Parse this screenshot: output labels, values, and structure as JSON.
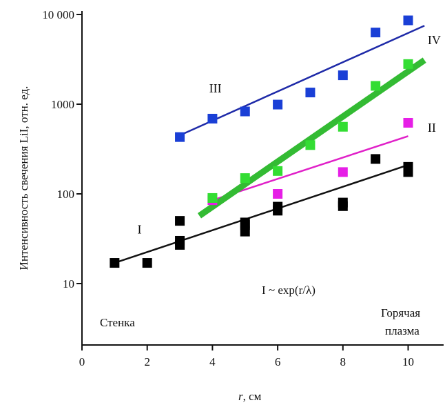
{
  "chart_data": {
    "type": "scatter",
    "xlabel_prefix": "r",
    "xlabel_suffix": ", см",
    "ylabel": "Интенсивность свечения LiI, отн. ед.",
    "xlim": [
      0,
      11
    ],
    "ylim": [
      2,
      10000
    ],
    "yscale": "log",
    "xticks": [
      0,
      2,
      4,
      6,
      8,
      10
    ],
    "yticks": [
      {
        "value": 10,
        "label": "10"
      },
      {
        "value": 100,
        "label": "100"
      },
      {
        "value": 1000,
        "label": "1000"
      },
      {
        "value": 10000,
        "label": "10 000"
      }
    ],
    "grid": false,
    "series": [
      {
        "name": "I",
        "color": "#000000",
        "line_color": "#111111",
        "points": [
          [
            1,
            17
          ],
          [
            2,
            17
          ],
          [
            3,
            27
          ],
          [
            3,
            30
          ],
          [
            3,
            50
          ],
          [
            5,
            38
          ],
          [
            5,
            45
          ],
          [
            5,
            48
          ],
          [
            6,
            65
          ],
          [
            6,
            72
          ],
          [
            8,
            73
          ],
          [
            8,
            80
          ],
          [
            9,
            245
          ],
          [
            10,
            175
          ],
          [
            10,
            200
          ]
        ],
        "fit": [
          [
            1,
            17
          ],
          [
            10,
            210
          ]
        ]
      },
      {
        "name": "II",
        "color": "#e61ee6",
        "line_color": "#e020c8",
        "points": [
          [
            4,
            85
          ],
          [
            6,
            100
          ],
          [
            8,
            175
          ],
          [
            10,
            620
          ]
        ],
        "fit": [
          [
            4,
            85
          ],
          [
            10,
            440
          ]
        ]
      },
      {
        "name": "III",
        "color": "#1a3fd6",
        "line_color": "#1e2aa8",
        "points": [
          [
            3,
            430
          ],
          [
            4,
            690
          ],
          [
            5,
            830
          ],
          [
            6,
            990
          ],
          [
            7,
            1350
          ],
          [
            8,
            2100
          ],
          [
            9,
            6300
          ],
          [
            10,
            8600
          ]
        ],
        "fit": [
          [
            3,
            450
          ],
          [
            10.5,
            7500
          ]
        ]
      },
      {
        "name": "IV",
        "color": "#33dd33",
        "line_color": "#33bb33",
        "points": [
          [
            4,
            90
          ],
          [
            5,
            150
          ],
          [
            6,
            180
          ],
          [
            7,
            350
          ],
          [
            8,
            560
          ],
          [
            9,
            1600
          ],
          [
            10,
            2800
          ]
        ],
        "fit": [
          [
            3.6,
            57
          ],
          [
            10.5,
            3100
          ]
        ]
      }
    ],
    "annotations": {
      "formula": "I ~ exp(r/λ)",
      "left": "Стенка",
      "right_line1": "Горячая",
      "right_line2": "плазма"
    }
  }
}
